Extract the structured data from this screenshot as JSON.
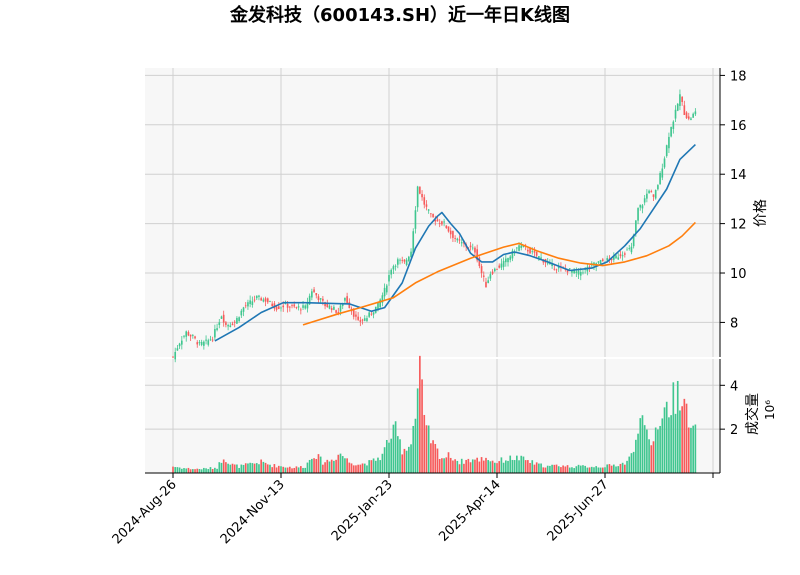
{
  "chart_data": {
    "type": "candlestick",
    "title": "金发科技（600143.SH）近一年日K线图",
    "price_panel": {
      "ylabel": "价格",
      "ylim": [
        6.6,
        18.3
      ],
      "yticks": [
        8,
        10,
        12,
        14,
        16,
        18
      ],
      "grid": true
    },
    "volume_panel": {
      "ylabel": "成交量",
      "unit_exponent": "10⁶",
      "ylim": [
        0,
        5.2
      ],
      "yticks": [
        2,
        4
      ],
      "grid": true
    },
    "x_ticks": [
      {
        "label": "2024-Aug-26",
        "day": 0
      },
      {
        "label": "2024-Nov-13",
        "day": 49
      },
      {
        "label": "2025-Jan-23",
        "day": 98
      },
      {
        "label": "2025-Apr-14",
        "day": 147
      },
      {
        "label": "2025-Jun-27",
        "day": 196
      },
      {
        "label": "",
        "day": 245
      }
    ],
    "price_keypoints": [
      [
        0,
        6.6
      ],
      [
        3,
        7.2
      ],
      [
        6,
        7.6
      ],
      [
        9,
        7.4
      ],
      [
        12,
        7.1
      ],
      [
        15,
        7.2
      ],
      [
        18,
        7.4
      ],
      [
        22,
        8.3
      ],
      [
        24,
        7.9
      ],
      [
        28,
        8.0
      ],
      [
        32,
        8.6
      ],
      [
        35,
        8.8
      ],
      [
        38,
        9.0
      ],
      [
        42,
        8.9
      ],
      [
        47,
        8.6
      ],
      [
        51,
        8.7
      ],
      [
        55,
        8.6
      ],
      [
        60,
        8.6
      ],
      [
        63,
        9.3
      ],
      [
        66,
        9.0
      ],
      [
        69,
        8.7
      ],
      [
        72,
        8.6
      ],
      [
        75,
        8.4
      ],
      [
        78,
        9.0
      ],
      [
        81,
        8.5
      ],
      [
        84,
        8.0
      ],
      [
        88,
        8.2
      ],
      [
        93,
        8.7
      ],
      [
        96,
        9.3
      ],
      [
        99,
        10.2
      ],
      [
        102,
        10.5
      ],
      [
        105,
        10.4
      ],
      [
        108,
        10.9
      ],
      [
        111,
        13.5
      ],
      [
        114,
        12.8
      ],
      [
        117,
        12.3
      ],
      [
        120,
        12.1
      ],
      [
        123,
        12.0
      ],
      [
        126,
        11.6
      ],
      [
        129,
        11.3
      ],
      [
        133,
        11.1
      ],
      [
        137,
        10.9
      ],
      [
        140,
        10.0
      ],
      [
        142,
        9.5
      ],
      [
        144,
        10.0
      ],
      [
        147,
        10.2
      ],
      [
        150,
        10.4
      ],
      [
        153,
        10.7
      ],
      [
        157,
        11.1
      ],
      [
        160,
        11.0
      ],
      [
        163,
        10.8
      ],
      [
        167,
        10.6
      ],
      [
        171,
        10.3
      ],
      [
        175,
        10.2
      ],
      [
        180,
        10.1
      ],
      [
        184,
        10.0
      ],
      [
        188,
        10.2
      ],
      [
        192,
        10.4
      ],
      [
        196,
        10.5
      ],
      [
        200,
        10.6
      ],
      [
        204,
        10.8
      ],
      [
        208,
        11.0
      ],
      [
        211,
        12.6
      ],
      [
        213,
        12.8
      ],
      [
        216,
        13.4
      ],
      [
        218,
        13.0
      ],
      [
        220,
        13.6
      ],
      [
        223,
        14.7
      ],
      [
        225,
        15.6
      ],
      [
        228,
        16.5
      ],
      [
        230,
        17.2
      ],
      [
        232,
        16.5
      ],
      [
        234,
        16.2
      ],
      [
        237,
        16.5
      ]
    ],
    "volume_keypoints": [
      [
        0,
        0.3
      ],
      [
        5,
        0.22
      ],
      [
        10,
        0.18
      ],
      [
        15,
        0.2
      ],
      [
        20,
        0.25
      ],
      [
        23,
        0.75
      ],
      [
        26,
        0.4
      ],
      [
        30,
        0.3
      ],
      [
        35,
        0.4
      ],
      [
        40,
        0.5
      ],
      [
        45,
        0.35
      ],
      [
        50,
        0.3
      ],
      [
        55,
        0.25
      ],
      [
        60,
        0.3
      ],
      [
        64,
        0.9
      ],
      [
        68,
        0.5
      ],
      [
        72,
        0.6
      ],
      [
        76,
        0.9
      ],
      [
        80,
        0.5
      ],
      [
        85,
        0.4
      ],
      [
        90,
        0.5
      ],
      [
        95,
        0.8
      ],
      [
        98,
        1.6
      ],
      [
        101,
        1.9
      ],
      [
        104,
        1.1
      ],
      [
        107,
        1.2
      ],
      [
        110,
        2.6
      ],
      [
        112,
        5.0
      ],
      [
        114,
        2.2
      ],
      [
        118,
        1.3
      ],
      [
        122,
        0.7
      ],
      [
        126,
        0.8
      ],
      [
        130,
        0.5
      ],
      [
        134,
        0.6
      ],
      [
        138,
        0.6
      ],
      [
        142,
        0.7
      ],
      [
        146,
        0.5
      ],
      [
        150,
        0.6
      ],
      [
        155,
        0.7
      ],
      [
        160,
        0.6
      ],
      [
        165,
        0.4
      ],
      [
        170,
        0.3
      ],
      [
        175,
        0.35
      ],
      [
        180,
        0.3
      ],
      [
        185,
        0.3
      ],
      [
        190,
        0.3
      ],
      [
        195,
        0.3
      ],
      [
        200,
        0.35
      ],
      [
        205,
        0.45
      ],
      [
        209,
        0.9
      ],
      [
        212,
        3.1
      ],
      [
        214,
        1.8
      ],
      [
        217,
        1.2
      ],
      [
        220,
        2.4
      ],
      [
        223,
        2.8
      ],
      [
        226,
        3.2
      ],
      [
        229,
        3.7
      ],
      [
        231,
        3.9
      ],
      [
        233,
        2.6
      ],
      [
        235,
        1.9
      ],
      [
        237,
        1.8
      ]
    ],
    "ma_short": {
      "window": 20,
      "color": "#1f77b4",
      "points": [
        [
          19,
          7.25
        ],
        [
          30,
          7.8
        ],
        [
          40,
          8.4
        ],
        [
          50,
          8.8
        ],
        [
          60,
          8.8
        ],
        [
          80,
          8.75
        ],
        [
          90,
          8.45
        ],
        [
          96,
          8.6
        ],
        [
          104,
          9.6
        ],
        [
          110,
          11.0
        ],
        [
          116,
          11.9
        ],
        [
          120,
          12.3
        ],
        [
          122,
          12.45
        ],
        [
          126,
          12.0
        ],
        [
          130,
          11.6
        ],
        [
          135,
          10.8
        ],
        [
          140,
          10.45
        ],
        [
          145,
          10.45
        ],
        [
          150,
          10.75
        ],
        [
          155,
          10.85
        ],
        [
          162,
          10.7
        ],
        [
          170,
          10.45
        ],
        [
          180,
          10.1
        ],
        [
          190,
          10.2
        ],
        [
          197,
          10.45
        ],
        [
          205,
          11.1
        ],
        [
          212,
          11.8
        ],
        [
          218,
          12.6
        ],
        [
          224,
          13.4
        ],
        [
          230,
          14.6
        ],
        [
          237,
          15.2
        ]
      ]
    },
    "ma_long": {
      "window": 60,
      "color": "#ff7f0e",
      "points": [
        [
          59,
          7.9
        ],
        [
          75,
          8.35
        ],
        [
          85,
          8.6
        ],
        [
          100,
          9.0
        ],
        [
          110,
          9.6
        ],
        [
          120,
          10.05
        ],
        [
          135,
          10.6
        ],
        [
          150,
          11.05
        ],
        [
          157,
          11.2
        ],
        [
          165,
          10.9
        ],
        [
          175,
          10.6
        ],
        [
          185,
          10.4
        ],
        [
          195,
          10.3
        ],
        [
          205,
          10.45
        ],
        [
          215,
          10.7
        ],
        [
          225,
          11.1
        ],
        [
          231,
          11.5
        ],
        [
          237,
          12.05
        ]
      ]
    },
    "colors": {
      "up": "#3fc68f",
      "down": "#f75a5a",
      "panel_bg": "#f7f7f7",
      "grid": "#d0d0d0"
    }
  }
}
